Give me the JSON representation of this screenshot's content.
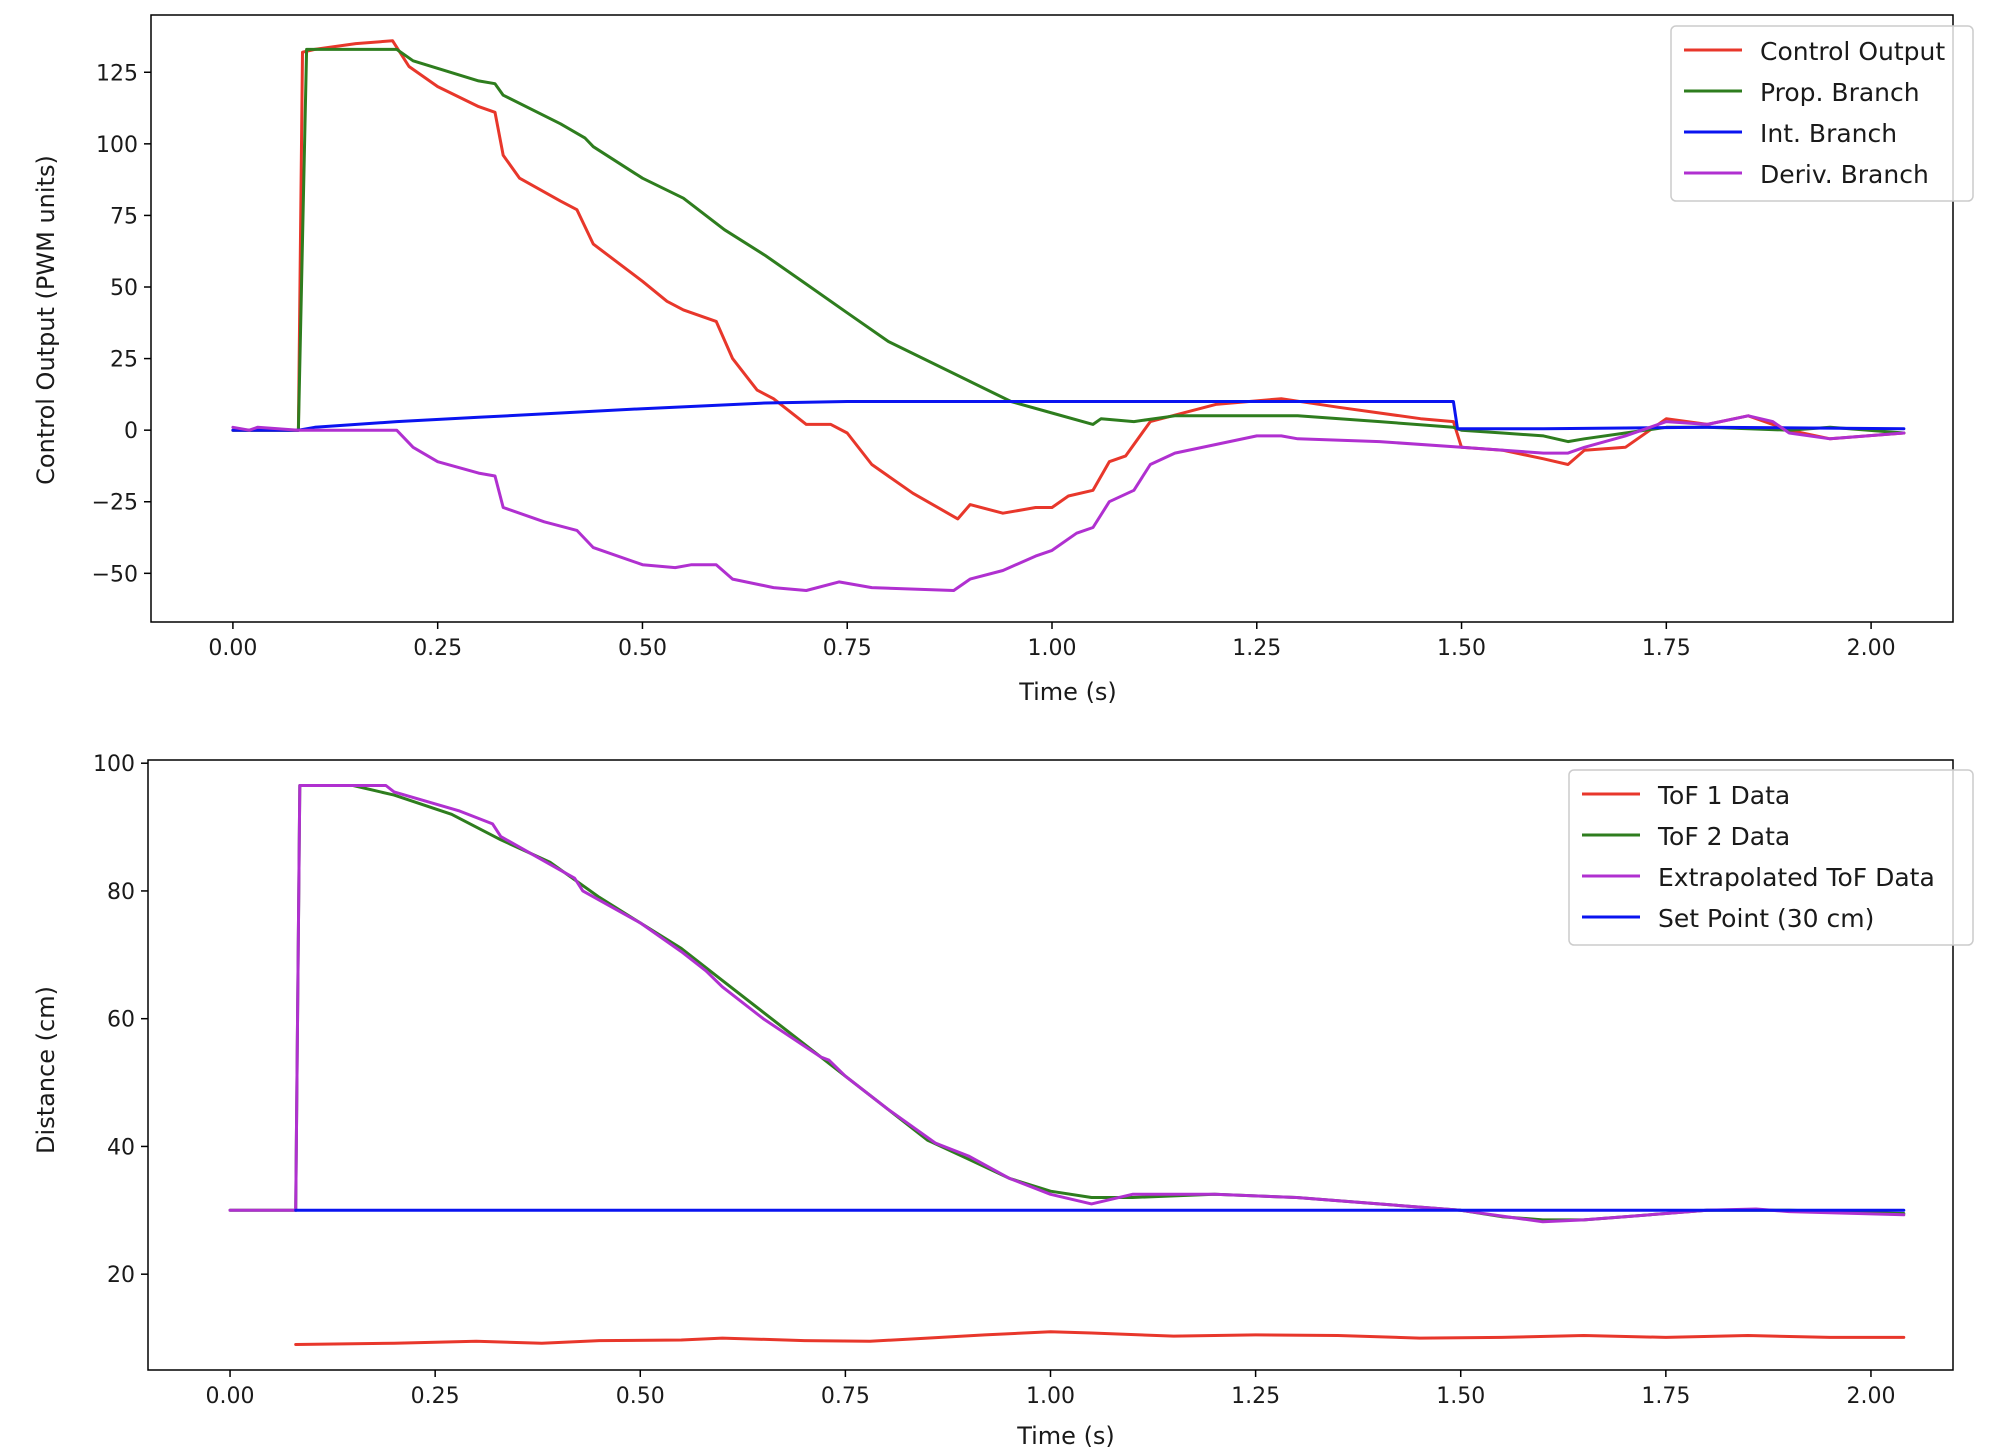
{
  "colors": {
    "red": "#e8372b",
    "green": "#2e7d1e",
    "blue": "#0a14f0",
    "purple": "#b030d0"
  },
  "chart_data": [
    {
      "type": "line",
      "title": "",
      "xlabel": "Time (s)",
      "ylabel": "Control Output (PWM units)",
      "xlim": [
        -0.1,
        2.1
      ],
      "ylim": [
        -67,
        145
      ],
      "xticks": [
        0.0,
        0.25,
        0.5,
        0.75,
        1.0,
        1.25,
        1.5,
        1.75,
        2.0
      ],
      "xtick_labels": [
        "0.00",
        "0.25",
        "0.50",
        "0.75",
        "1.00",
        "1.25",
        "1.50",
        "1.75",
        "2.00"
      ],
      "yticks": [
        125,
        100,
        75,
        50,
        25,
        0,
        -25,
        -50
      ],
      "ytick_labels": [
        "125",
        "100",
        "75",
        "50",
        "25",
        "0",
        "−25",
        "−50"
      ],
      "grid": false,
      "legend": "top-right",
      "series": [
        {
          "name": "Control Output",
          "color": "#e8372b",
          "x": [
            0.0,
            0.08,
            0.085,
            0.1,
            0.15,
            0.195,
            0.215,
            0.25,
            0.3,
            0.32,
            0.33,
            0.35,
            0.4,
            0.42,
            0.44,
            0.5,
            0.53,
            0.55,
            0.59,
            0.61,
            0.64,
            0.66,
            0.7,
            0.73,
            0.75,
            0.78,
            0.83,
            0.885,
            0.9,
            0.94,
            0.98,
            1.0,
            1.02,
            1.05,
            1.07,
            1.09,
            1.12,
            1.2,
            1.28,
            1.35,
            1.45,
            1.49,
            1.5,
            1.55,
            1.6,
            1.63,
            1.65,
            1.7,
            1.75,
            1.8,
            1.85,
            1.9,
            1.95,
            2.04
          ],
          "y": [
            0,
            0,
            132,
            133,
            135,
            136,
            127,
            120,
            113,
            111,
            96,
            88,
            80,
            77,
            65,
            52,
            45,
            42,
            38,
            25,
            14,
            11,
            2,
            2,
            -1,
            -12,
            -22,
            -31,
            -26,
            -29,
            -27,
            -27,
            -23,
            -21,
            -11,
            -9,
            3,
            9,
            11,
            8,
            4,
            3,
            -6,
            -7,
            -10,
            -12,
            -7,
            -6,
            4,
            2,
            5,
            0,
            -3,
            -1
          ]
        },
        {
          "name": "Prop. Branch",
          "color": "#2e7d1e",
          "x": [
            0.0,
            0.08,
            0.09,
            0.2,
            0.22,
            0.3,
            0.32,
            0.33,
            0.4,
            0.43,
            0.44,
            0.5,
            0.55,
            0.6,
            0.65,
            0.7,
            0.75,
            0.8,
            0.9,
            0.95,
            1.0,
            1.05,
            1.06,
            1.1,
            1.15,
            1.2,
            1.3,
            1.4,
            1.49,
            1.5,
            1.55,
            1.6,
            1.63,
            1.65,
            1.7,
            1.75,
            1.8,
            1.9,
            1.95,
            2.04
          ],
          "y": [
            0,
            0,
            133,
            133,
            129,
            122,
            121,
            117,
            107,
            102,
            99,
            88,
            81,
            70,
            61,
            51,
            41,
            31,
            17,
            10,
            6,
            2,
            4,
            3,
            5,
            5,
            5,
            3,
            1,
            0,
            -1,
            -2,
            -4,
            -3,
            -1,
            1,
            1,
            0,
            1,
            -1
          ]
        },
        {
          "name": "Int. Branch",
          "color": "#0a14f0",
          "x": [
            0.0,
            0.08,
            0.1,
            0.2,
            0.3,
            0.4,
            0.5,
            0.65,
            0.75,
            1.0,
            1.25,
            1.49,
            1.495,
            1.6,
            1.8,
            2.04
          ],
          "y": [
            0,
            0,
            1,
            3,
            4.5,
            6,
            7.5,
            9.5,
            10,
            10,
            10,
            10,
            0.5,
            0.5,
            1,
            0.5
          ]
        },
        {
          "name": "Deriv. Branch",
          "color": "#b030d0",
          "x": [
            0.0,
            0.02,
            0.03,
            0.08,
            0.2,
            0.22,
            0.25,
            0.3,
            0.32,
            0.33,
            0.38,
            0.42,
            0.44,
            0.5,
            0.54,
            0.56,
            0.59,
            0.61,
            0.66,
            0.7,
            0.74,
            0.78,
            0.88,
            0.9,
            0.94,
            0.98,
            1.0,
            1.03,
            1.05,
            1.07,
            1.1,
            1.12,
            1.15,
            1.2,
            1.25,
            1.28,
            1.3,
            1.4,
            1.5,
            1.6,
            1.63,
            1.65,
            1.7,
            1.75,
            1.8,
            1.85,
            1.88,
            1.9,
            1.95,
            2.04
          ],
          "y": [
            1,
            0,
            1,
            0,
            0,
            -6,
            -11,
            -15,
            -16,
            -27,
            -32,
            -35,
            -41,
            -47,
            -48,
            -47,
            -47,
            -52,
            -55,
            -56,
            -53,
            -55,
            -56,
            -52,
            -49,
            -44,
            -42,
            -36,
            -34,
            -25,
            -21,
            -12,
            -8,
            -5,
            -2,
            -2,
            -3,
            -4,
            -6,
            -8,
            -8,
            -6,
            -2,
            3,
            2,
            5,
            3,
            -1,
            -3,
            -1
          ]
        }
      ]
    },
    {
      "type": "line",
      "title": "",
      "xlabel": "Time (s)",
      "ylabel": "Distance (cm)",
      "xlim": [
        -0.1,
        2.1
      ],
      "ylim": [
        5,
        100.5
      ],
      "xticks": [
        0.0,
        0.25,
        0.5,
        0.75,
        1.0,
        1.25,
        1.5,
        1.75,
        2.0
      ],
      "xtick_labels": [
        "0.00",
        "0.25",
        "0.50",
        "0.75",
        "1.00",
        "1.25",
        "1.50",
        "1.75",
        "2.00"
      ],
      "yticks": [
        100,
        80,
        60,
        40,
        20
      ],
      "ytick_labels": [
        "100",
        "80",
        "60",
        "40",
        "20"
      ],
      "grid": false,
      "legend": "top-right",
      "series": [
        {
          "name": "ToF 1 Data",
          "color": "#e8372b",
          "x": [
            0.08,
            0.2,
            0.3,
            0.38,
            0.45,
            0.55,
            0.6,
            0.7,
            0.78,
            0.85,
            0.92,
            1.0,
            1.05,
            1.15,
            1.25,
            1.35,
            1.45,
            1.55,
            1.65,
            1.75,
            1.85,
            1.95,
            2.04
          ],
          "y": [
            9,
            9.2,
            9.5,
            9.2,
            9.6,
            9.7,
            10,
            9.6,
            9.5,
            10,
            10.5,
            11,
            10.8,
            10.3,
            10.5,
            10.4,
            10,
            10.1,
            10.4,
            10.1,
            10.4,
            10.1,
            10.1
          ]
        },
        {
          "name": "ToF 2 Data",
          "color": "#2e7d1e",
          "x": [
            0.0,
            0.08,
            0.085,
            0.15,
            0.2,
            0.27,
            0.33,
            0.39,
            0.45,
            0.5,
            0.55,
            0.6,
            0.65,
            0.7,
            0.75,
            0.8,
            0.85,
            0.9,
            0.95,
            1.0,
            1.05,
            1.1,
            1.2,
            1.3,
            1.4,
            1.5,
            1.55,
            1.6,
            1.65,
            1.7,
            1.75,
            1.8,
            1.9,
            2.04
          ],
          "y": [
            30,
            30,
            96.5,
            96.5,
            95,
            92,
            88,
            84.5,
            79,
            75,
            71,
            66,
            61,
            56,
            51,
            46,
            41,
            38,
            35,
            33,
            32,
            32,
            32.5,
            32,
            31,
            30,
            29,
            28.5,
            28.5,
            29,
            29.5,
            30,
            30,
            29.5
          ]
        },
        {
          "name": "Extrapolated ToF Data",
          "color": "#b030d0",
          "x": [
            0.0,
            0.08,
            0.085,
            0.19,
            0.2,
            0.28,
            0.32,
            0.33,
            0.42,
            0.43,
            0.5,
            0.55,
            0.58,
            0.6,
            0.65,
            0.72,
            0.73,
            0.75,
            0.8,
            0.86,
            0.9,
            0.95,
            1.0,
            1.05,
            1.1,
            1.2,
            1.3,
            1.4,
            1.5,
            1.6,
            1.65,
            1.7,
            1.75,
            1.8,
            1.86,
            1.9,
            2.04
          ],
          "y": [
            30,
            30,
            96.5,
            96.5,
            95.5,
            92.5,
            90.5,
            88.5,
            82,
            80,
            75,
            70.5,
            67.5,
            65,
            60,
            54,
            53.5,
            51,
            46,
            40.5,
            38.5,
            35,
            32.5,
            31,
            32.5,
            32.5,
            32,
            31,
            30,
            28.2,
            28.5,
            29,
            29.5,
            30,
            30.2,
            29.8,
            29.3
          ]
        },
        {
          "name": "Set Point (30 cm)",
          "color": "#0a14f0",
          "x": [
            0.08,
            2.04
          ],
          "y": [
            30,
            30
          ]
        }
      ]
    }
  ]
}
